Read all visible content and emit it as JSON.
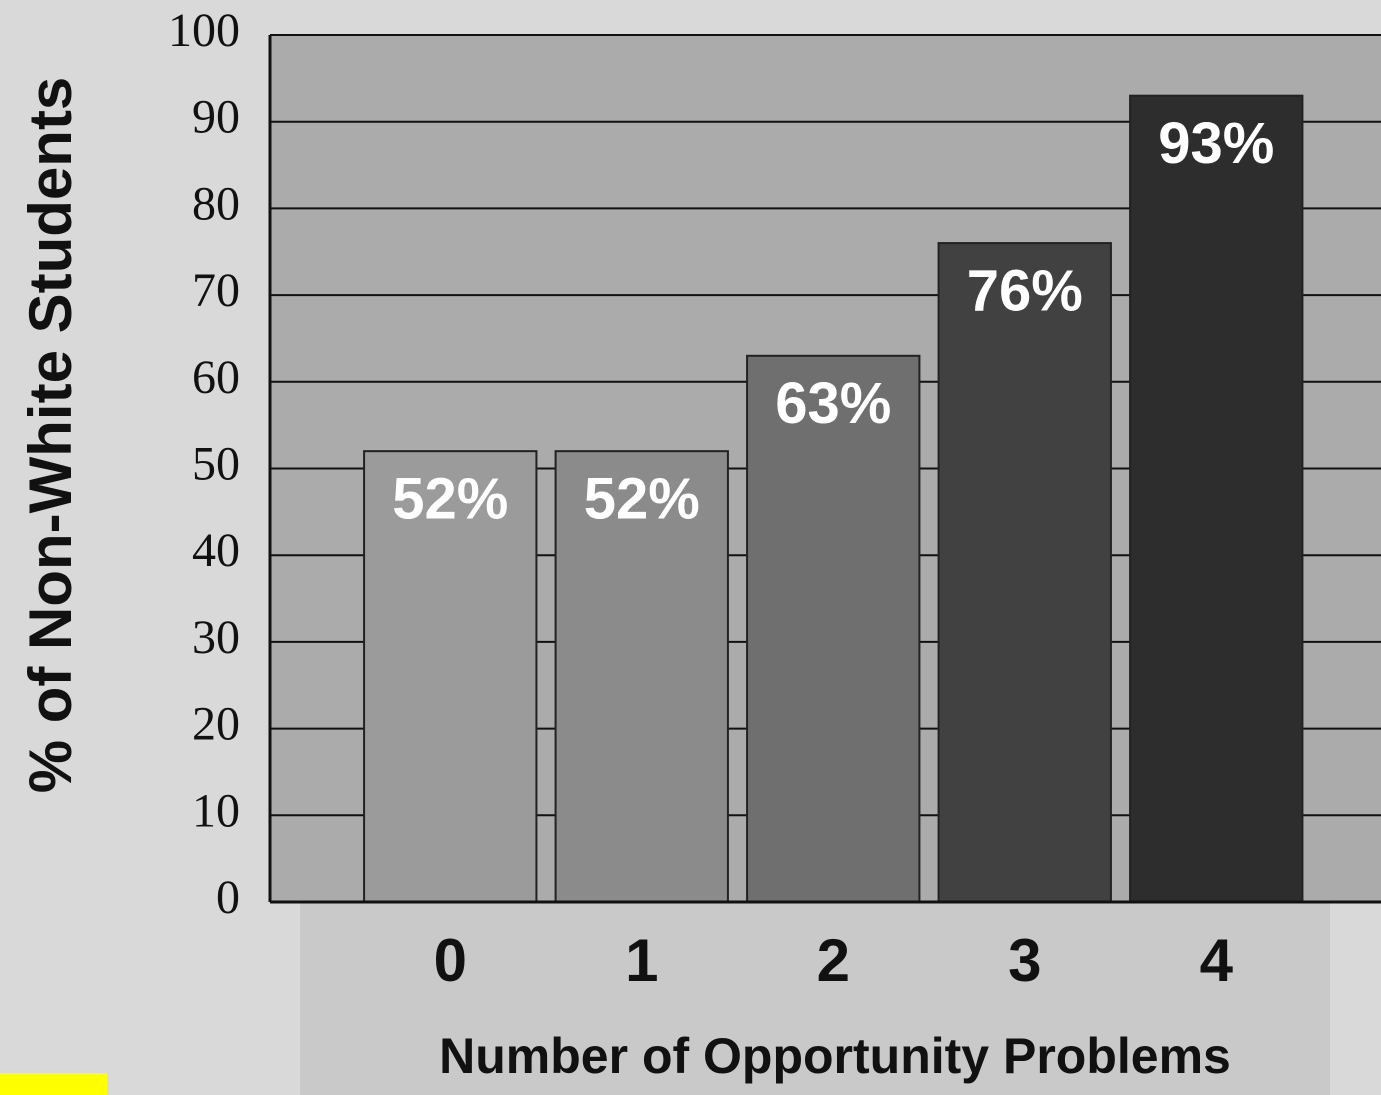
{
  "chart_data": {
    "type": "bar",
    "y_label": "% of Non-White Students",
    "x_label": "Number of Opportunity Problems",
    "categories": [
      "0",
      "1",
      "2",
      "3",
      "4"
    ],
    "values": [
      52,
      52,
      63,
      76,
      93
    ],
    "value_labels": [
      "52%",
      "52%",
      "63%",
      "76%",
      "93%"
    ],
    "colors": [
      "#9b9b9b",
      "#8b8b8b",
      "#6f6f6f",
      "#414141",
      "#2d2d2d"
    ],
    "ylim": [
      0,
      100
    ],
    "yticks": [
      0,
      10,
      20,
      30,
      40,
      50,
      60,
      70,
      80,
      90,
      100
    ],
    "grid": true
  }
}
